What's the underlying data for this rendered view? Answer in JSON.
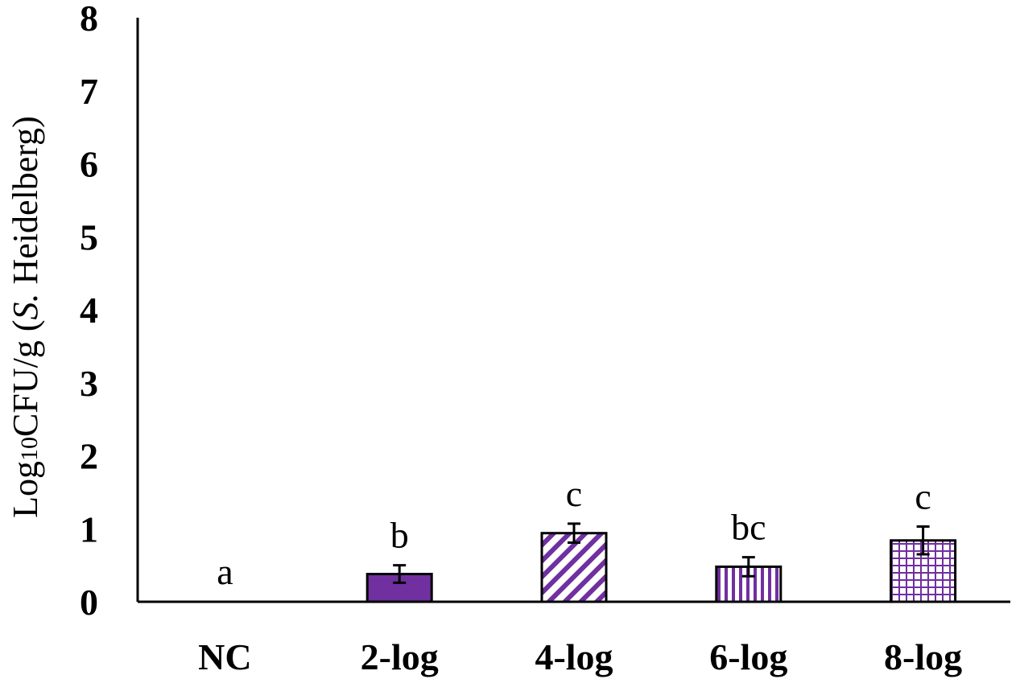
{
  "chart_data": {
    "type": "bar",
    "categories": [
      "NC",
      "2-log",
      "4-log",
      "6-log",
      "8-log"
    ],
    "values": [
      0,
      0.38,
      0.94,
      0.48,
      0.84
    ],
    "errors": [
      0,
      0.12,
      0.13,
      0.13,
      0.19
    ],
    "significance_letters": [
      "a",
      "b",
      "c",
      "bc",
      "c"
    ],
    "bar_patterns": [
      "none",
      "solid",
      "diagonal-stripes",
      "vertical-stripes",
      "grid"
    ],
    "ylabel": {
      "prefix": "Log",
      "subscript": "10",
      "unit": "CFU/g (",
      "italic": "S.",
      "suffix": " Heidelberg)"
    },
    "ylim": [
      0,
      8
    ],
    "yticks": [
      "0",
      "1",
      "2",
      "3",
      "4",
      "5",
      "6",
      "7",
      "8"
    ],
    "grid": false,
    "legend": "none",
    "colors": {
      "bar_fill": "#7030a0",
      "bar_edge": "#000000",
      "pattern_bg": "#ffffff",
      "axis": "#000000"
    }
  }
}
